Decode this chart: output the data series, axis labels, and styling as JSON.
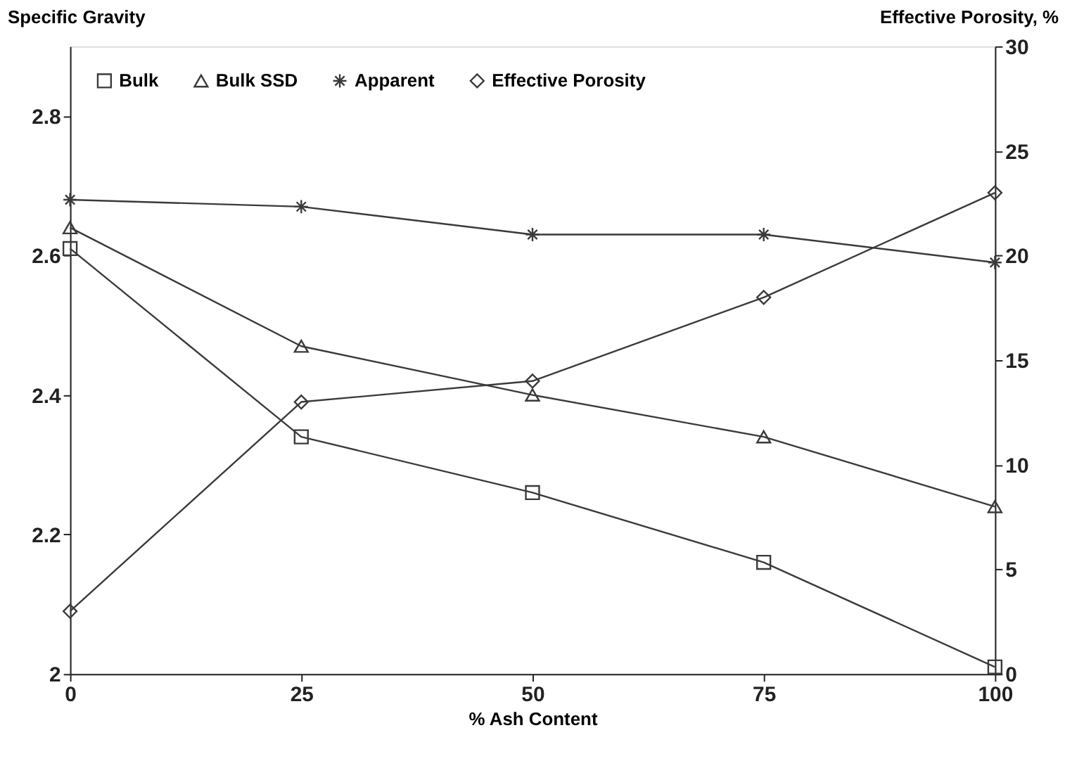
{
  "chart_data": {
    "type": "line",
    "xlabel": "% Ash Content",
    "ylabel": "Specific Gravity",
    "y2label": "Effective Porosity, %",
    "x": [
      0,
      25,
      50,
      75,
      100
    ],
    "series": [
      {
        "name": "Bulk",
        "color": "#3a3a3a",
        "marker": "square",
        "values": [
          2.61,
          2.34,
          2.26,
          2.16,
          2.01
        ]
      },
      {
        "name": "Bulk SSD",
        "color": "#3a3a3a",
        "marker": "triangle",
        "values": [
          2.64,
          2.47,
          2.4,
          2.34,
          2.24
        ]
      },
      {
        "name": "Apparent",
        "color": "#3a3a3a",
        "marker": "cross",
        "values": [
          2.68,
          2.67,
          2.63,
          2.63,
          2.59
        ]
      },
      {
        "name": "Effective Porosity",
        "color": "#3a3a3a",
        "marker": "diamond",
        "axis": "y2",
        "values": [
          3,
          13,
          14,
          18,
          23
        ]
      }
    ],
    "xlim": [
      0,
      100
    ],
    "xticks": [
      0,
      25,
      50,
      75,
      100
    ],
    "ylim": [
      2,
      2.9
    ],
    "yticks": [
      {
        "value": 2,
        "label": "2"
      },
      2.2,
      2.4,
      2.6,
      2.8
    ],
    "y2lim": [
      0,
      30
    ],
    "y2ticks": [
      0,
      5,
      10,
      15,
      20,
      25,
      30
    ],
    "grid": false,
    "legend": "top left",
    "line_style": "solid"
  }
}
